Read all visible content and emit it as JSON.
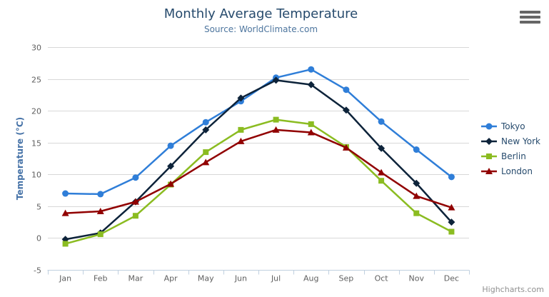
{
  "header": {
    "title": "Monthly Average Temperature",
    "subtitle": "Source: WorldClimate.com"
  },
  "credit": "Highcharts.com",
  "theme": {
    "background": "#ffffff",
    "title_color": "#274b6d",
    "subtitle_color": "#4d759e",
    "axis_label_color": "#606060",
    "axis_title_color": "#4572a7",
    "axis_line_color": "#c0d0e0",
    "grid_color": "#d8d8d8",
    "legend_text_color": "#274b6d",
    "credit_color": "#909090",
    "menu_icon_color": "#666666"
  },
  "chart_data": {
    "type": "line",
    "title": "Monthly Average Temperature",
    "subtitle": "Source: WorldClimate.com",
    "categories": [
      "Jan",
      "Feb",
      "Mar",
      "Apr",
      "May",
      "Jun",
      "Jul",
      "Aug",
      "Sep",
      "Oct",
      "Nov",
      "Dec"
    ],
    "series": [
      {
        "name": "Tokyo",
        "color": "#2f7ed8",
        "marker": "circle",
        "values": [
          7.0,
          6.9,
          9.5,
          14.5,
          18.2,
          21.5,
          25.2,
          26.5,
          23.3,
          18.3,
          13.9,
          9.6
        ]
      },
      {
        "name": "New York",
        "color": "#0d233a",
        "marker": "diamond",
        "values": [
          -0.2,
          0.8,
          5.7,
          11.3,
          17.0,
          22.0,
          24.8,
          24.1,
          20.1,
          14.1,
          8.6,
          2.5
        ]
      },
      {
        "name": "Berlin",
        "color": "#8bbc21",
        "marker": "square",
        "values": [
          -0.9,
          0.6,
          3.5,
          8.4,
          13.5,
          17.0,
          18.6,
          17.9,
          14.3,
          9.0,
          3.9,
          1.0
        ]
      },
      {
        "name": "London",
        "color": "#910000",
        "marker": "triangle",
        "values": [
          3.9,
          4.2,
          5.7,
          8.5,
          11.9,
          15.2,
          17.0,
          16.6,
          14.2,
          10.3,
          6.6,
          4.8
        ]
      }
    ],
    "xlabel": "",
    "ylabel": "Temperature (°C)",
    "ylim": [
      -5,
      30
    ],
    "ytick_step": 5,
    "grid": true,
    "legend_position": "right-middle"
  }
}
